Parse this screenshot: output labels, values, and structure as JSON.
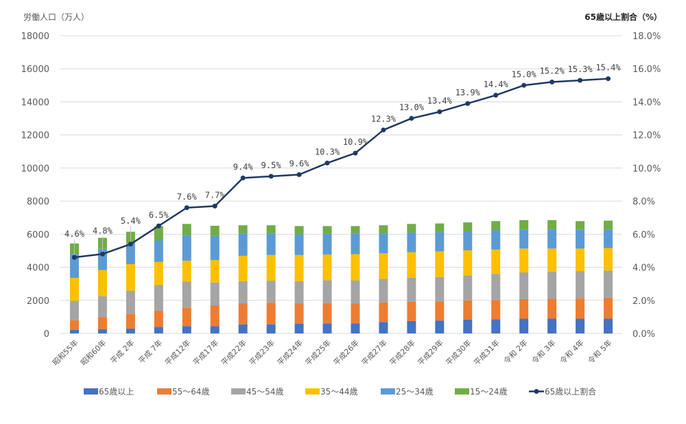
{
  "chart_data": {
    "type": "bar",
    "stacked": true,
    "title": "",
    "ylabel": "労働人口（万人）",
    "y2label": "65歳以上割合（%）",
    "ylim": [
      0,
      18000
    ],
    "y2lim": [
      0,
      18
    ],
    "yticks": [
      "0",
      "2000",
      "4000",
      "6000",
      "8000",
      "10000",
      "12000",
      "14000",
      "16000",
      "18000"
    ],
    "y2ticks": [
      "0.0%",
      "2.0%",
      "4.0%",
      "6.0%",
      "8.0%",
      "10.0%",
      "12.0%",
      "14.0%",
      "16.0%",
      "18.0%"
    ],
    "grid": true,
    "legend_position": "bottom",
    "categories": [
      "昭和55年",
      "昭和60年",
      "平成 2年",
      "平成 7年",
      "平成12年",
      "平成17年",
      "平成22年",
      "平成23年",
      "平成24年",
      "平成25年",
      "平成26年",
      "平成27年",
      "平成28年",
      "平成29年",
      "平成30年",
      "平成31年",
      "令和 2年",
      "令和 3年",
      "令和 4年",
      "令和 5年"
    ],
    "series": [
      {
        "name": "65歳以上",
        "color": "#4472C4",
        "values": [
          220,
          250,
          300,
          390,
          440,
          440,
          550,
          550,
          580,
          610,
          610,
          690,
          750,
          780,
          830,
          860,
          890,
          890,
          890,
          890
        ]
      },
      {
        "name": "55〜64歳",
        "color": "#ED7D31",
        "values": [
          580,
          740,
          890,
          980,
          1100,
          1240,
          1280,
          1310,
          1250,
          1220,
          1220,
          1190,
          1160,
          1160,
          1170,
          1160,
          1190,
          1220,
          1220,
          1270
        ]
      },
      {
        "name": "45〜54歳",
        "color": "#A5A5A5",
        "values": [
          1170,
          1260,
          1390,
          1570,
          1590,
          1400,
          1330,
          1330,
          1330,
          1380,
          1380,
          1420,
          1450,
          1470,
          1520,
          1580,
          1610,
          1630,
          1660,
          1640
        ]
      },
      {
        "name": "35〜44歳",
        "color": "#FFC000",
        "values": [
          1390,
          1580,
          1610,
          1380,
          1270,
          1350,
          1530,
          1550,
          1580,
          1560,
          1580,
          1550,
          1550,
          1550,
          1500,
          1470,
          1440,
          1390,
          1360,
          1360
        ]
      },
      {
        "name": "25〜34歳",
        "color": "#5B9BD5",
        "values": [
          1440,
          1280,
          1280,
          1300,
          1500,
          1470,
          1330,
          1300,
          1250,
          1250,
          1230,
          1190,
          1190,
          1160,
          1160,
          1170,
          1140,
          1160,
          1140,
          1110
        ]
      },
      {
        "name": "15〜24歳",
        "color": "#70AD47",
        "values": [
          640,
          670,
          680,
          860,
          720,
          610,
          520,
          500,
          500,
          470,
          470,
          500,
          520,
          530,
          530,
          550,
          580,
          560,
          520,
          550
        ]
      }
    ],
    "line_series": {
      "name": "65歳以上割合",
      "color": "#203864",
      "axis": "right",
      "values": [
        4.6,
        4.8,
        5.4,
        6.5,
        7.6,
        7.7,
        9.4,
        9.5,
        9.6,
        10.3,
        10.9,
        12.3,
        13.0,
        13.4,
        13.9,
        14.4,
        15.0,
        15.2,
        15.3,
        15.4
      ],
      "labels": [
        "4.6%",
        "4.8%",
        "5.4%",
        "6.5%",
        "7.6%",
        "7.7%",
        "9.4%",
        "9.5%",
        "9.6%",
        "10.3%",
        "10.9%",
        "12.3%",
        "13.0%",
        "13.4%",
        "13.9%",
        "14.4%",
        "15.0%",
        "15.2%",
        "15.3%",
        "15.4%"
      ]
    }
  }
}
